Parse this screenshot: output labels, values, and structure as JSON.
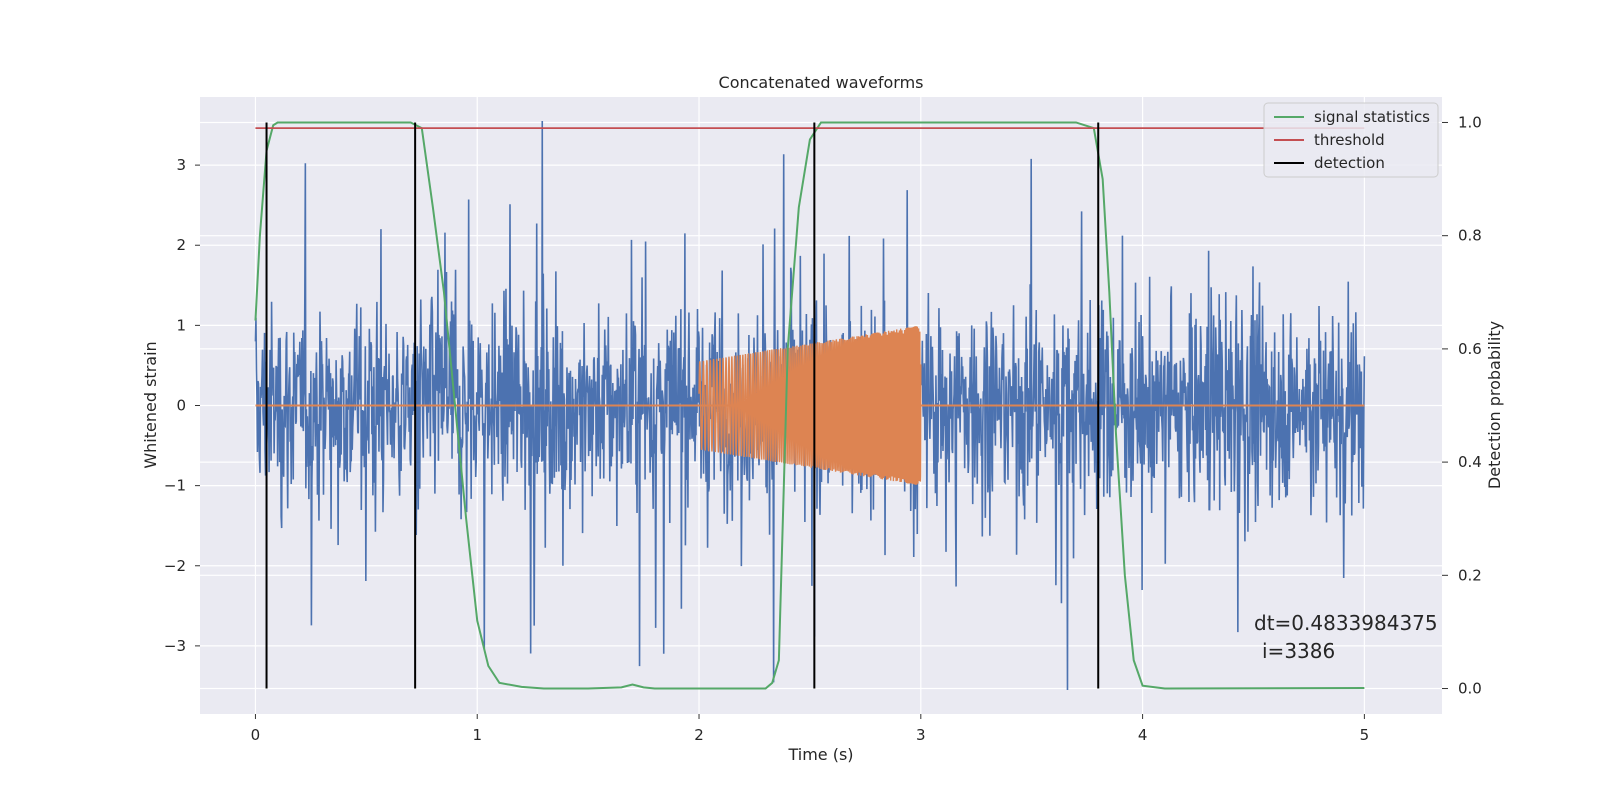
{
  "chart_data": {
    "type": "line",
    "title": "Concatenated waveforms",
    "xlabel": "Time (s)",
    "ylabel_left": "Whitened strain",
    "ylabel_right": "Detection probability",
    "xlim": [
      -0.25,
      5.35
    ],
    "ylim_left": [
      -3.85,
      3.85
    ],
    "ylim_right": [
      -0.045,
      1.045
    ],
    "x_ticks": [
      0,
      1,
      2,
      3,
      4,
      5
    ],
    "y_ticks_left": [
      -3,
      -2,
      -1,
      0,
      1,
      2,
      3
    ],
    "y_ticks_right": [
      0.0,
      0.2,
      0.4,
      0.6,
      0.8,
      1.0
    ],
    "x_tick_labels": [
      "0",
      "1",
      "2",
      "3",
      "4",
      "5"
    ],
    "y_tick_labels_left": [
      "−3",
      "−2",
      "−1",
      "0",
      "1",
      "2",
      "3"
    ],
    "y_tick_labels_right": [
      "0.0",
      "0.2",
      "0.4",
      "0.6",
      "0.8",
      "1.0"
    ],
    "grid": true,
    "background_color": "#eaeaf2",
    "legend_placement": "top-right",
    "series": [
      {
        "role": "strain",
        "axis": "left",
        "color": "#4c72b0",
        "x_range": [
          0,
          5
        ],
        "envelope": [
          [
            0,
            2.4
          ],
          [
            1.8,
            3.5
          ],
          [
            5,
            2.0
          ]
        ],
        "description_values": "noise, approx. -3.5 to 3.5"
      },
      {
        "role": "injection",
        "axis": "left",
        "color": "#dd8452",
        "chirp": {
          "start": 2.0,
          "end": 3.0,
          "amp_start": 0.55,
          "amp_end": 1.0,
          "f_start": 60,
          "f_end": 180
        },
        "baseline": 0
      },
      {
        "name": "signal statistics",
        "axis": "right",
        "color": "#55a868",
        "x": [
          0.0,
          0.02,
          0.05,
          0.08,
          0.1,
          0.15,
          0.2,
          0.6,
          0.7,
          0.75,
          0.8,
          0.85,
          0.9,
          0.95,
          1.0,
          1.05,
          1.1,
          1.2,
          1.3,
          1.5,
          1.65,
          1.7,
          1.75,
          1.8,
          2.0,
          2.3,
          2.33,
          2.36,
          2.4,
          2.45,
          2.5,
          2.55,
          2.6,
          3.7,
          3.78,
          3.82,
          3.85,
          3.88,
          3.92,
          3.96,
          4.0,
          4.1,
          5.0
        ],
        "y": [
          0.65,
          0.8,
          0.95,
          0.995,
          1.0,
          1.0,
          1.0,
          1.0,
          1.0,
          0.99,
          0.85,
          0.7,
          0.5,
          0.3,
          0.12,
          0.04,
          0.01,
          0.003,
          0.0,
          0.0,
          0.002,
          0.007,
          0.002,
          0.0,
          0.0,
          0.0,
          0.01,
          0.05,
          0.6,
          0.85,
          0.97,
          1.0,
          1.0,
          1.0,
          0.99,
          0.9,
          0.7,
          0.45,
          0.2,
          0.05,
          0.005,
          0.0,
          0.001
        ]
      },
      {
        "name": "threshold",
        "axis": "right",
        "color": "#c44e52",
        "x": [
          0,
          5
        ],
        "y": [
          0.99,
          0.99
        ]
      },
      {
        "name": "detection",
        "axis": "right",
        "color": "#000000",
        "x": [
          0.05,
          0.72,
          2.52,
          3.8
        ],
        "y_range": [
          0,
          1.0
        ]
      }
    ],
    "legend": [
      "signal statistics",
      "threshold",
      "detection"
    ],
    "annotation_line1": "dt=0.4833984375",
    "annotation_line2": "i=3386"
  }
}
